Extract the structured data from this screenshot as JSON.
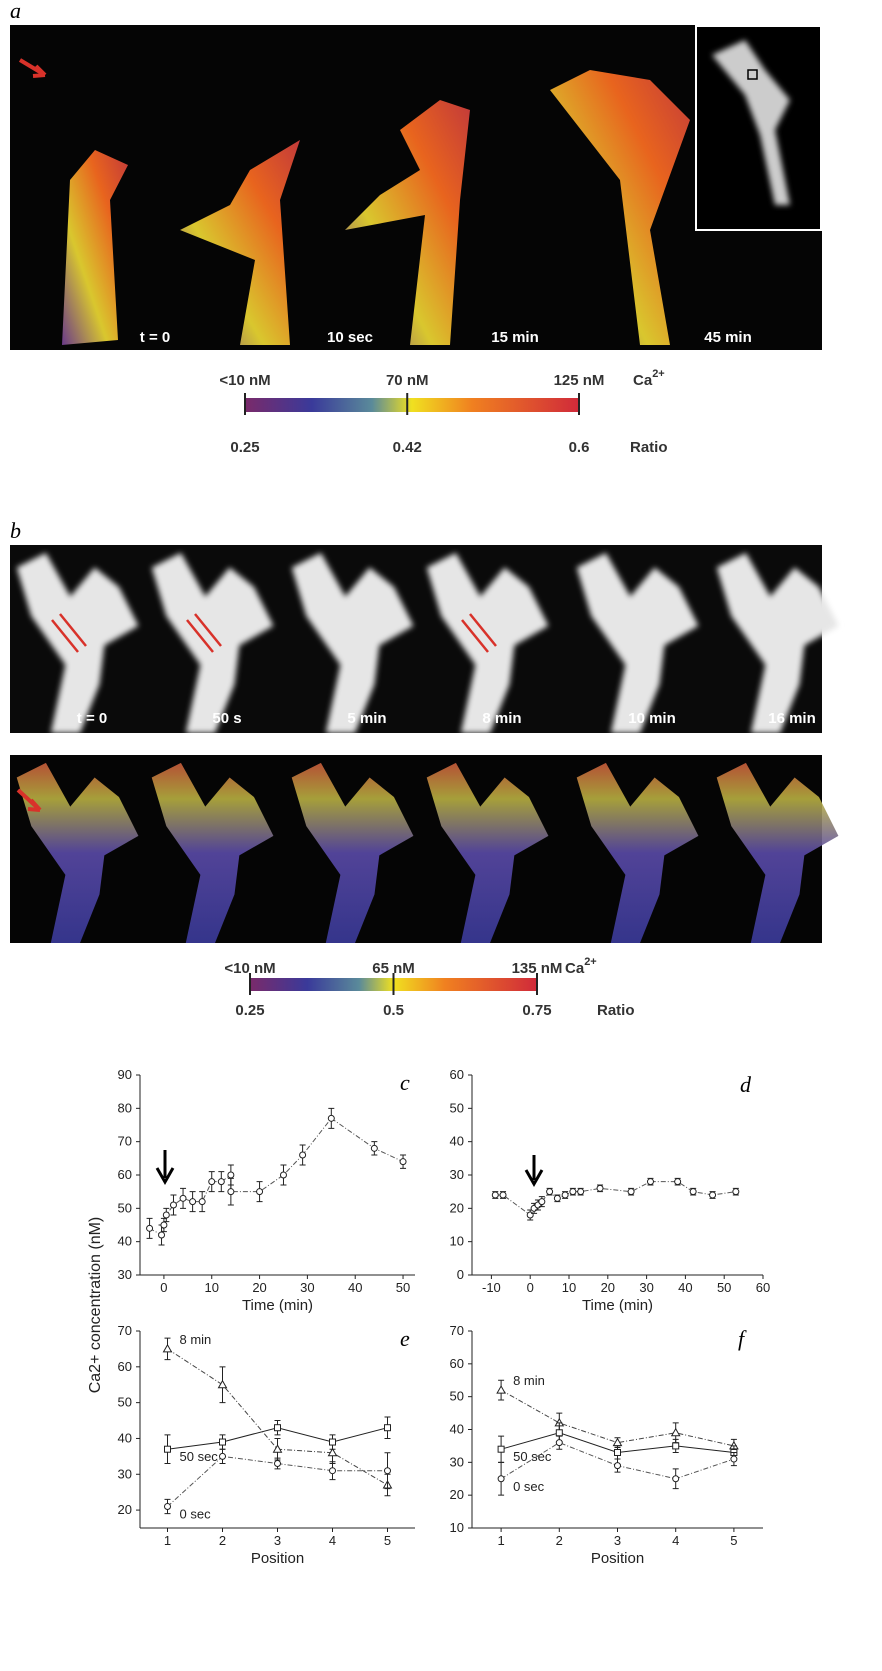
{
  "panel_a": {
    "label": "a",
    "times": [
      "t = 0",
      "10 sec",
      "15 min",
      "45 min"
    ]
  },
  "colorbar_a": {
    "concentrations": [
      "<10 nM",
      "70 nM",
      "125 nM"
    ],
    "ion": "Ca",
    "charge": "2+",
    "ratios": [
      0.25,
      0.42,
      0.6
    ],
    "ratio_label": "Ratio"
  },
  "panel_b": {
    "label": "b",
    "times": [
      "t = 0",
      "50 s",
      "5 min",
      "8 min",
      "10 min",
      "16 min"
    ]
  },
  "colorbar_b": {
    "concentrations": [
      "<10 nM",
      "65 nM",
      "135 nM"
    ],
    "ion": "Ca",
    "charge": "2+",
    "ratios": [
      0.25,
      0.5,
      0.75
    ],
    "ratio_label": "Ratio"
  },
  "shared_ylabel": "Ca2+ concentration (nM)",
  "chart_data": [
    {
      "type": "line",
      "panel": "c",
      "xlabel": "Time (min)",
      "color": "#555",
      "x": [
        -3,
        -0.5,
        0,
        0.5,
        2,
        4,
        6,
        8,
        10,
        12,
        14,
        14,
        20,
        25,
        29,
        35,
        44,
        50
      ],
      "values": [
        44,
        42,
        45,
        48,
        51,
        53,
        52,
        52,
        58,
        58,
        60,
        55,
        55,
        60,
        66,
        77,
        68,
        64
      ],
      "errors": [
        3,
        3,
        2,
        2,
        3,
        3,
        3,
        3,
        3,
        3,
        3,
        4,
        3,
        3,
        3,
        3,
        2,
        2
      ],
      "xlim": [
        -5,
        52.5
      ],
      "xticks": [
        0,
        10,
        20,
        30,
        40,
        50
      ],
      "ylim": [
        30,
        90
      ],
      "yticks": [
        30,
        40,
        50,
        60,
        70,
        80,
        90
      ]
    },
    {
      "type": "line",
      "panel": "d",
      "xlabel": "Time (min)",
      "color": "#555",
      "x": [
        -9,
        -7,
        0,
        1,
        2,
        3,
        5,
        7,
        9,
        11,
        13,
        18,
        26,
        31,
        38,
        42,
        47,
        53
      ],
      "values": [
        24,
        24,
        18,
        20,
        21,
        22,
        25,
        23,
        24,
        25,
        25,
        26,
        25,
        28,
        28,
        25,
        24,
        25
      ],
      "errors": [
        1,
        1,
        1.5,
        1.5,
        1.5,
        1.5,
        1,
        1,
        1,
        1,
        1,
        1,
        1,
        1,
        1,
        1,
        1,
        1
      ],
      "xlim": [
        -15,
        60
      ],
      "xticks": [
        -10,
        0,
        10,
        20,
        30,
        40,
        50,
        60
      ],
      "ylim": [
        0,
        60
      ],
      "yticks": [
        0,
        10,
        20,
        30,
        40,
        50,
        60
      ]
    },
    {
      "type": "line",
      "panel": "e",
      "xlabel": "Position",
      "x": [
        1,
        2,
        3,
        4,
        5
      ],
      "xlim": [
        0.5,
        5.5
      ],
      "xticks": [
        1,
        2,
        3,
        4,
        5
      ],
      "ylim": [
        15,
        70
      ],
      "yticks": [
        20,
        30,
        40,
        50,
        60,
        70
      ],
      "series": [
        {
          "name": "8 min",
          "color": "#444",
          "marker": "triangle",
          "values": [
            65,
            55,
            37,
            36,
            27
          ],
          "errors": [
            3,
            5,
            3,
            3,
            3
          ]
        },
        {
          "name": "50 sec",
          "color": "#222",
          "marker": "square",
          "values": [
            37,
            39,
            43,
            39,
            43
          ],
          "errors": [
            4,
            2,
            2,
            2,
            3
          ]
        },
        {
          "name": "0 sec",
          "color": "#555",
          "marker": "circle",
          "values": [
            21,
            35,
            33,
            31,
            31
          ],
          "errors": [
            2,
            2,
            1.5,
            2.5,
            5
          ]
        }
      ]
    },
    {
      "type": "line",
      "panel": "f",
      "xlabel": "Position",
      "x": [
        1,
        2,
        3,
        4,
        5
      ],
      "xlim": [
        0.5,
        5.5
      ],
      "xticks": [
        1,
        2,
        3,
        4,
        5
      ],
      "ylim": [
        10,
        70
      ],
      "yticks": [
        10,
        20,
        30,
        40,
        50,
        60,
        70
      ],
      "series": [
        {
          "name": "8 min",
          "color": "#444",
          "marker": "triangle",
          "values": [
            52,
            42,
            36,
            39,
            35
          ],
          "errors": [
            3,
            3,
            1.5,
            3,
            2
          ]
        },
        {
          "name": "50 sec",
          "color": "#222",
          "marker": "square",
          "values": [
            34,
            39,
            33,
            35,
            33
          ],
          "errors": [
            4,
            3,
            2,
            2,
            2
          ]
        },
        {
          "name": "0 sec",
          "color": "#555",
          "marker": "circle",
          "values": [
            25,
            36,
            29,
            25,
            31
          ],
          "errors": [
            5,
            2,
            2,
            3,
            2
          ]
        }
      ]
    }
  ]
}
